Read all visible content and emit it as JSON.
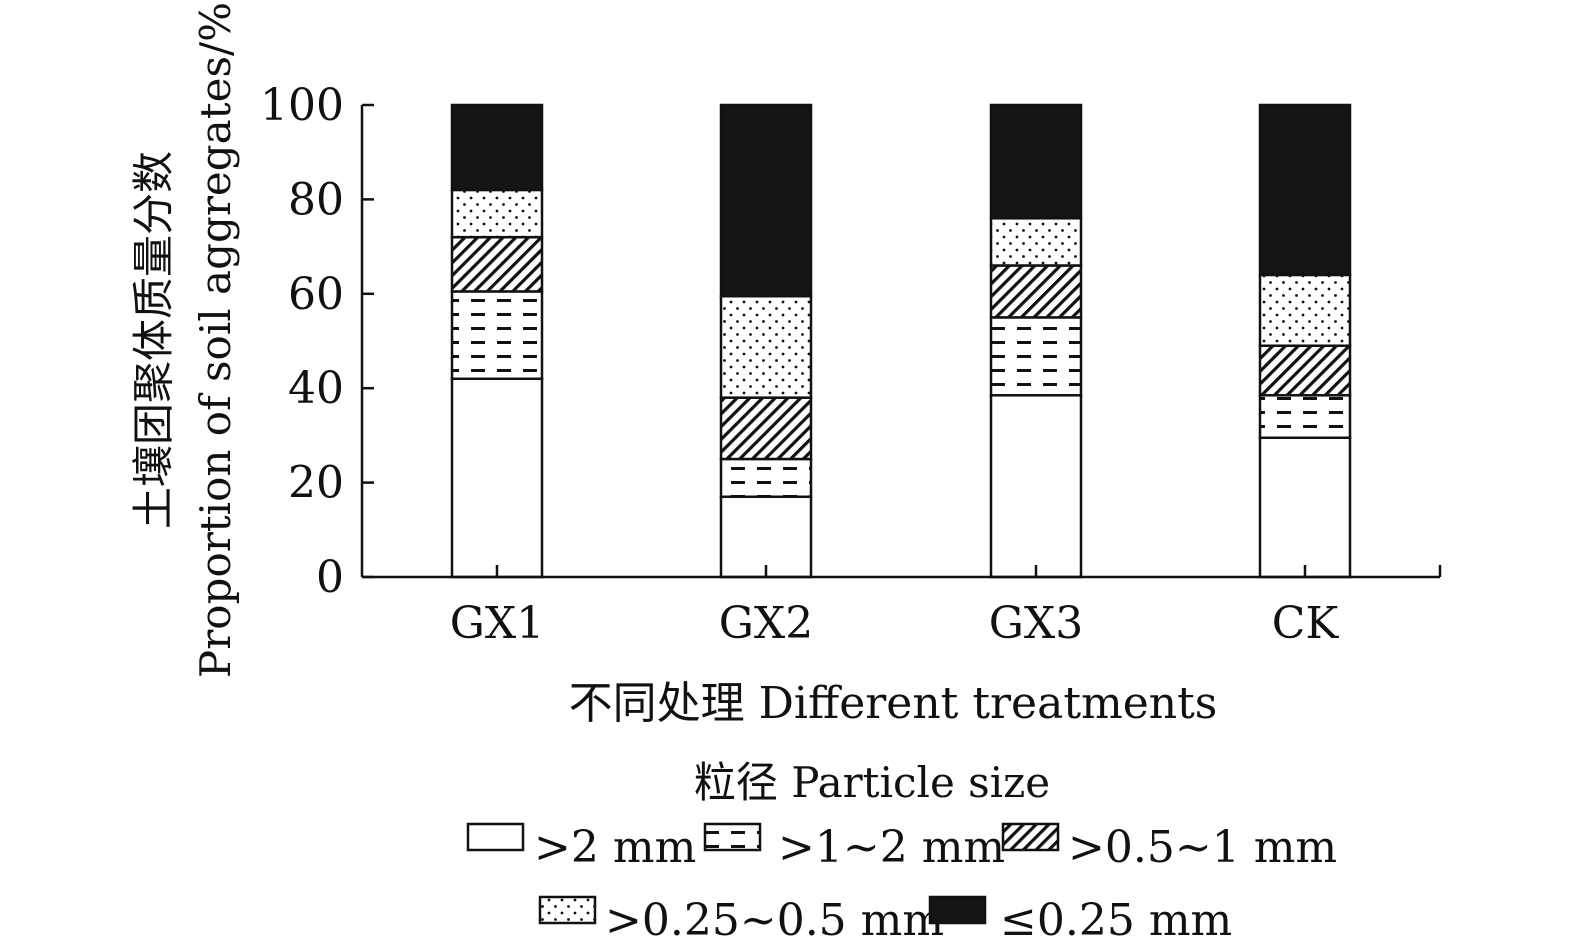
{
  "chart_data": {
    "type": "bar",
    "stacked": true,
    "categories": [
      "GX1",
      "GX2",
      "GX3",
      "CK"
    ],
    "series": [
      {
        "name": ">2 mm",
        "pattern": "blank",
        "values": [
          42,
          17,
          38.5,
          29.5
        ]
      },
      {
        "name": ">1~2 mm",
        "pattern": "dashes",
        "values": [
          18.5,
          8,
          16.5,
          9
        ]
      },
      {
        "name": ">0.5~1 mm",
        "pattern": "diagonal",
        "values": [
          11.5,
          13,
          11,
          10.5
        ]
      },
      {
        "name": ">0.25~0.5 mm",
        "pattern": "dots",
        "values": [
          10,
          21.5,
          10,
          15
        ]
      },
      {
        "name": "≤0.25 mm",
        "pattern": "solid",
        "values": [
          18,
          40.5,
          24,
          36
        ]
      }
    ],
    "ylim": [
      0,
      100
    ],
    "yticks": [
      0,
      20,
      40,
      60,
      80,
      100
    ],
    "ylabel_zh": "土壤团聚体质量分数",
    "ylabel_en": "Proportion of soil aggregates/%",
    "xlabel": "不同处理 Different treatments",
    "legend_title": "粒径 Particle size",
    "legend_position": "bottom",
    "grid": false,
    "colors": {
      "ink": "#111111",
      "fill": "#ffffff",
      "dark": "#141414"
    }
  }
}
